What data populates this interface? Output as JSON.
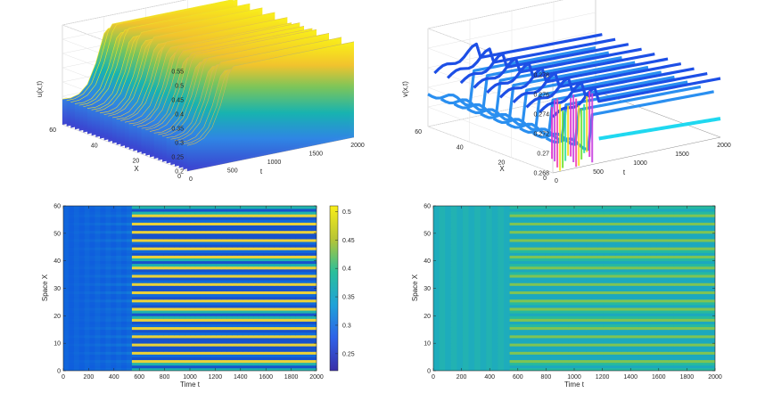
{
  "chart_data": [
    {
      "type": "surface3d",
      "panel": "top-left",
      "zlabel": "u(x,t)",
      "xlabel": "t",
      "ylabel": "X",
      "t_ticks": [
        "0",
        "500",
        "1000",
        "1500",
        "2000"
      ],
      "x_ticks": [
        "0",
        "20",
        "40",
        "60"
      ],
      "z_ticks": [
        "0.2",
        "0.25",
        "0.3",
        "0.35",
        "0.4",
        "0.45",
        "0.5",
        "0.55"
      ],
      "t_range": [
        0,
        2000
      ],
      "x_range": [
        0,
        60
      ],
      "z_range": [
        0.2,
        0.55
      ],
      "profile_t": [
        0,
        100,
        200,
        300,
        400,
        500,
        550,
        600,
        700,
        900,
        1200,
        1500,
        1800,
        2000
      ],
      "profile_u": [
        0.29,
        0.29,
        0.3,
        0.33,
        0.4,
        0.5,
        0.52,
        0.52,
        0.52,
        0.52,
        0.52,
        0.52,
        0.52,
        0.52
      ],
      "colormap": "parula",
      "grid": "on"
    },
    {
      "type": "surface3d",
      "panel": "top-right",
      "zlabel": "v(x,t)",
      "xlabel": "t",
      "ylabel": "X",
      "t_ticks": [
        "0",
        "500",
        "1000",
        "1500",
        "2000"
      ],
      "x_ticks": [
        "0",
        "20",
        "40",
        "60"
      ],
      "z_ticks": [
        "0.268",
        "0.27",
        "0.272",
        "0.274",
        "0.276",
        "0.278"
      ],
      "t_range": [
        0,
        2000
      ],
      "x_range": [
        0,
        60
      ],
      "z_range": [
        0.268,
        0.278
      ],
      "colormap": "hsv-like",
      "grid": "on"
    },
    {
      "type": "heatmap",
      "panel": "bottom-left",
      "xlabel": "Time t",
      "ylabel": "Space X",
      "x_ticks": [
        "0",
        "200",
        "400",
        "600",
        "800",
        "1000",
        "1200",
        "1400",
        "1600",
        "1800",
        "2000"
      ],
      "y_ticks": [
        "0",
        "10",
        "20",
        "30",
        "40",
        "50",
        "60"
      ],
      "colorbar_ticks": [
        "0.25",
        "0.3",
        "0.35",
        "0.4",
        "0.45",
        "0.5"
      ],
      "colorbar_range": [
        0.22,
        0.51
      ],
      "stripe_count": 19,
      "pattern_onset_t": 560,
      "colormap": "parula"
    },
    {
      "type": "heatmap",
      "panel": "bottom-right",
      "xlabel": "Time t",
      "ylabel": "Space X",
      "x_ticks": [
        "0",
        "200",
        "400",
        "600",
        "800",
        "1000",
        "1200",
        "1400",
        "1600",
        "1800",
        "2000"
      ],
      "y_ticks": [
        "0",
        "10",
        "20",
        "30",
        "40",
        "50",
        "60"
      ],
      "stripe_count": 19,
      "pattern_onset_t": 560,
      "colormap": "parula"
    }
  ]
}
